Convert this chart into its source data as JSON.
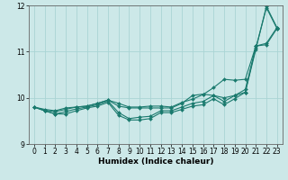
{
  "xlabel": "Humidex (Indice chaleur)",
  "background_color": "#cce8e8",
  "line_color": "#1a7a6e",
  "grid_color": "#aad4d4",
  "xlim": [
    -0.5,
    23.5
  ],
  "ylim": [
    9.0,
    12.0
  ],
  "yticks": [
    9,
    10,
    11,
    12
  ],
  "xticks": [
    0,
    1,
    2,
    3,
    4,
    5,
    6,
    7,
    8,
    9,
    10,
    11,
    12,
    13,
    14,
    15,
    16,
    17,
    18,
    19,
    20,
    21,
    22,
    23
  ],
  "series": [
    [
      9.8,
      9.75,
      9.72,
      9.78,
      9.8,
      9.82,
      9.88,
      9.95,
      9.82,
      9.78,
      9.78,
      9.78,
      9.78,
      9.78,
      9.88,
      10.05,
      10.08,
      10.05,
      10.0,
      10.05,
      10.12,
      11.12,
      11.18,
      11.52
    ],
    [
      9.8,
      9.72,
      9.65,
      9.65,
      9.72,
      9.78,
      9.82,
      9.9,
      9.62,
      9.52,
      9.52,
      9.55,
      9.68,
      9.68,
      9.75,
      9.82,
      9.85,
      9.98,
      9.85,
      9.98,
      10.12,
      11.05,
      11.98,
      11.52
    ],
    [
      9.8,
      9.73,
      9.7,
      9.75,
      9.8,
      9.82,
      9.88,
      9.95,
      9.88,
      9.8,
      9.8,
      9.82,
      9.82,
      9.8,
      9.9,
      9.97,
      10.07,
      10.22,
      10.4,
      10.38,
      10.4,
      11.12,
      11.15,
      11.5
    ],
    [
      9.8,
      9.72,
      9.65,
      9.7,
      9.76,
      9.8,
      9.85,
      9.93,
      9.68,
      9.55,
      9.58,
      9.6,
      9.72,
      9.72,
      9.8,
      9.88,
      9.92,
      10.05,
      9.92,
      10.05,
      10.18,
      11.08,
      11.95,
      11.5
    ]
  ],
  "marker": "D",
  "markersize": 2.0,
  "linewidth": 0.8
}
